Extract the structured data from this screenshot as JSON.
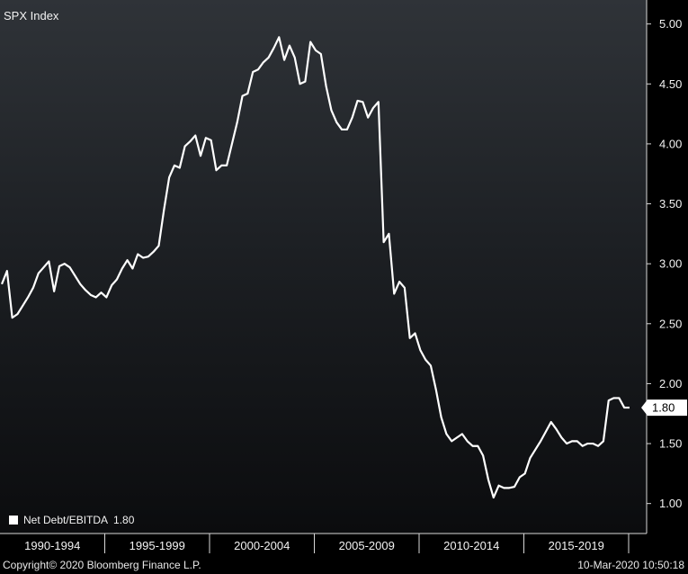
{
  "chart_data": {
    "type": "line",
    "title": "SPX Index",
    "series": [
      {
        "name": "Net Debt/EBITDA",
        "color": "#ffffff",
        "values": [
          2.83,
          2.94,
          2.55,
          2.58,
          2.65,
          2.72,
          2.8,
          2.92,
          2.97,
          3.02,
          2.77,
          2.98,
          3.0,
          2.97,
          2.9,
          2.83,
          2.78,
          2.74,
          2.72,
          2.76,
          2.72,
          2.82,
          2.87,
          2.96,
          3.03,
          2.96,
          3.08,
          3.05,
          3.06,
          3.1,
          3.15,
          3.45,
          3.72,
          3.82,
          3.8,
          3.98,
          4.02,
          4.07,
          3.9,
          4.05,
          4.03,
          3.78,
          3.82,
          3.82,
          4.0,
          4.18,
          4.4,
          4.42,
          4.6,
          4.62,
          4.68,
          4.72,
          4.8,
          4.89,
          4.7,
          4.82,
          4.72,
          4.5,
          4.52,
          4.85,
          4.78,
          4.75,
          4.48,
          4.28,
          4.18,
          4.12,
          4.12,
          4.22,
          4.36,
          4.35,
          4.22,
          4.3,
          4.35,
          3.18,
          3.25,
          2.75,
          2.85,
          2.8,
          2.38,
          2.42,
          2.28,
          2.2,
          2.15,
          1.95,
          1.72,
          1.58,
          1.52,
          1.55,
          1.58,
          1.52,
          1.48,
          1.48,
          1.4,
          1.2,
          1.05,
          1.15,
          1.13,
          1.13,
          1.14,
          1.22,
          1.25,
          1.38,
          1.45,
          1.52,
          1.6,
          1.68,
          1.62,
          1.55,
          1.5,
          1.52,
          1.52,
          1.48,
          1.5,
          1.5,
          1.48,
          1.52,
          1.86,
          1.88,
          1.88,
          1.8,
          1.8
        ]
      }
    ],
    "x_tick_labels": [
      "1990-1994",
      "1995-1999",
      "2000-2004",
      "2005-2009",
      "2010-2014",
      "2015-2019"
    ],
    "y_ticks": [
      "1.00",
      "1.50",
      "2.00",
      "2.50",
      "3.00",
      "3.50",
      "4.00",
      "4.50",
      "5.00"
    ],
    "ylim": [
      0.75,
      5.2
    ],
    "last_value_label": "1.80",
    "legend": {
      "label": "Net Debt/EBITDA",
      "value": "1.80",
      "placement": "bottom-left"
    }
  },
  "footer": {
    "copyright": "Copyright© 2020 Bloomberg Finance L.P.",
    "timestamp": "10-Mar-2020 10:50:18"
  }
}
